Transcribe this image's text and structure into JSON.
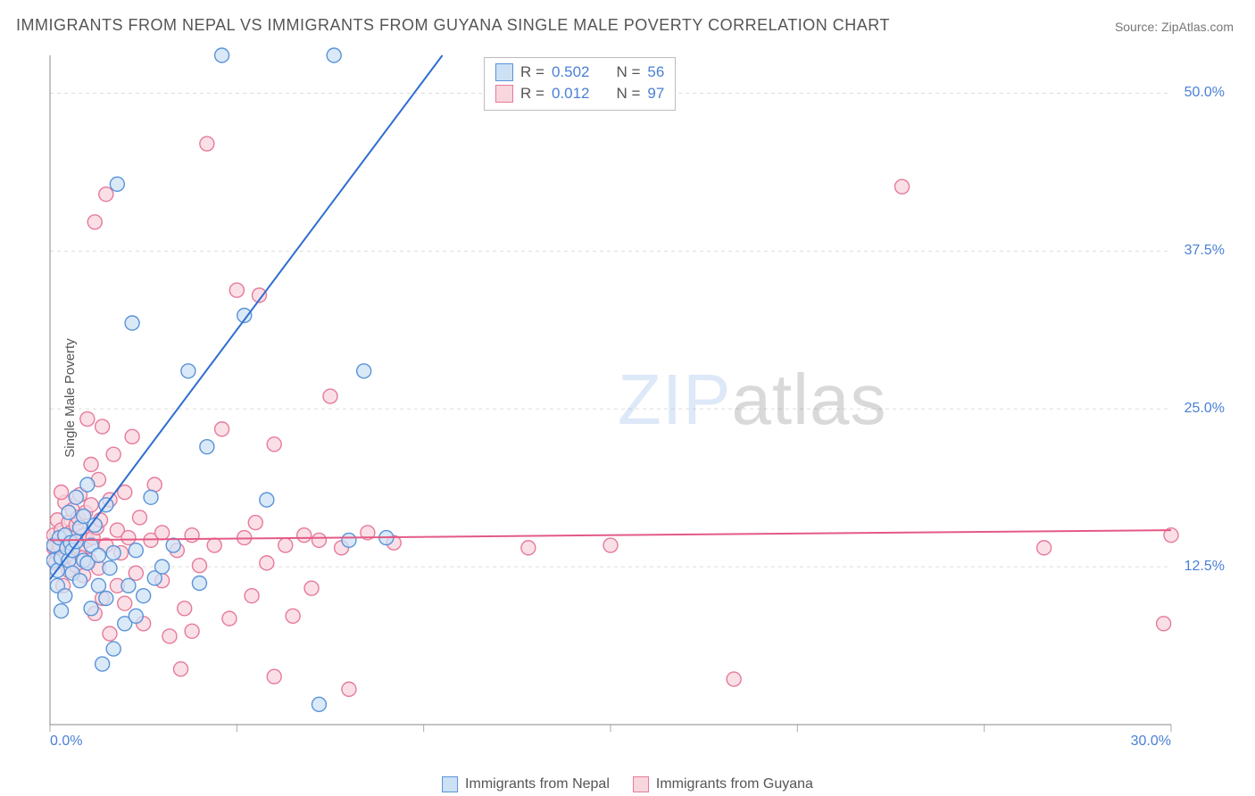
{
  "title": "IMMIGRANTS FROM NEPAL VS IMMIGRANTS FROM GUYANA SINGLE MALE POVERTY CORRELATION CHART",
  "source": "Source: ZipAtlas.com",
  "ylabel": "Single Male Poverty",
  "chart": {
    "type": "scatter",
    "xlim": [
      0,
      30
    ],
    "ylim": [
      0,
      53
    ],
    "xticks": [
      0,
      5,
      10,
      15,
      20,
      25,
      30
    ],
    "xtick_labels": [
      "0.0%",
      "",
      "",
      "",
      "",
      "",
      "30.0%"
    ],
    "yticks": [
      12.5,
      25.0,
      37.5,
      50.0
    ],
    "ytick_labels": [
      "12.5%",
      "25.0%",
      "37.5%",
      "50.0%"
    ],
    "background_color": "#ffffff",
    "grid_color": "#dddddd",
    "axis_color": "#888888",
    "tick_color": "#aaaaaa",
    "marker_radius": 8,
    "marker_stroke_width": 1.4,
    "line_width": 2,
    "series": [
      {
        "name": "Immigrants from Nepal",
        "fill": "#cde1f5",
        "stroke": "#5a93d8",
        "regression": {
          "x1": 0,
          "y1": 11.5,
          "x2": 10.5,
          "y2": 53,
          "color": "#2f6ecf"
        },
        "stats": {
          "R": "0.502",
          "N": "56"
        },
        "points": [
          [
            0.1,
            13.0
          ],
          [
            0.1,
            14.2
          ],
          [
            0.2,
            12.2
          ],
          [
            0.2,
            11.0
          ],
          [
            0.25,
            14.8
          ],
          [
            0.3,
            13.2
          ],
          [
            0.3,
            9.0
          ],
          [
            0.4,
            10.2
          ],
          [
            0.4,
            15.0
          ],
          [
            0.45,
            14.0
          ],
          [
            0.5,
            13.0
          ],
          [
            0.5,
            16.8
          ],
          [
            0.55,
            14.4
          ],
          [
            0.6,
            12.0
          ],
          [
            0.6,
            13.8
          ],
          [
            0.7,
            14.5
          ],
          [
            0.7,
            18.0
          ],
          [
            0.8,
            15.6
          ],
          [
            0.8,
            11.4
          ],
          [
            0.9,
            16.5
          ],
          [
            0.9,
            13.0
          ],
          [
            1.0,
            12.8
          ],
          [
            1.0,
            19.0
          ],
          [
            1.1,
            9.2
          ],
          [
            1.1,
            14.2
          ],
          [
            1.2,
            15.8
          ],
          [
            1.3,
            11.0
          ],
          [
            1.3,
            13.4
          ],
          [
            1.4,
            4.8
          ],
          [
            1.5,
            10.0
          ],
          [
            1.5,
            17.4
          ],
          [
            1.6,
            12.4
          ],
          [
            1.7,
            13.6
          ],
          [
            1.7,
            6.0
          ],
          [
            1.8,
            42.8
          ],
          [
            2.0,
            8.0
          ],
          [
            2.1,
            11.0
          ],
          [
            2.2,
            31.8
          ],
          [
            2.3,
            13.8
          ],
          [
            2.3,
            8.6
          ],
          [
            2.5,
            10.2
          ],
          [
            2.7,
            18.0
          ],
          [
            2.8,
            11.6
          ],
          [
            3.0,
            12.5
          ],
          [
            3.3,
            14.2
          ],
          [
            3.7,
            28.0
          ],
          [
            4.0,
            11.2
          ],
          [
            4.2,
            22.0
          ],
          [
            4.6,
            53.0
          ],
          [
            5.2,
            32.4
          ],
          [
            5.8,
            17.8
          ],
          [
            7.6,
            53.0
          ],
          [
            8.4,
            28.0
          ],
          [
            8.0,
            14.6
          ],
          [
            7.2,
            1.6
          ],
          [
            9.0,
            14.8
          ]
        ]
      },
      {
        "name": "Immigrants from Guyana",
        "fill": "#f8d6de",
        "stroke": "#e67a9a",
        "regression": {
          "x1": 0,
          "y1": 14.6,
          "x2": 30,
          "y2": 15.4,
          "color": "#e35a86"
        },
        "stats": {
          "R": "0.012",
          "N": "97"
        },
        "points": [
          [
            0.1,
            14.0
          ],
          [
            0.1,
            15.0
          ],
          [
            0.15,
            12.8
          ],
          [
            0.2,
            13.6
          ],
          [
            0.2,
            16.2
          ],
          [
            0.25,
            14.2
          ],
          [
            0.3,
            13.0
          ],
          [
            0.3,
            15.4
          ],
          [
            0.35,
            11.0
          ],
          [
            0.4,
            14.8
          ],
          [
            0.4,
            17.6
          ],
          [
            0.45,
            13.4
          ],
          [
            0.5,
            16.0
          ],
          [
            0.5,
            12.2
          ],
          [
            0.55,
            15.2
          ],
          [
            0.6,
            14.4
          ],
          [
            0.6,
            17.0
          ],
          [
            0.65,
            13.8
          ],
          [
            0.7,
            15.8
          ],
          [
            0.7,
            12.6
          ],
          [
            0.75,
            16.4
          ],
          [
            0.8,
            14.0
          ],
          [
            0.8,
            18.2
          ],
          [
            0.85,
            13.2
          ],
          [
            0.9,
            15.0
          ],
          [
            0.9,
            11.8
          ],
          [
            0.95,
            16.8
          ],
          [
            1.0,
            14.6
          ],
          [
            1.0,
            24.2
          ],
          [
            1.05,
            13.0
          ],
          [
            1.1,
            17.4
          ],
          [
            1.1,
            20.6
          ],
          [
            1.15,
            14.8
          ],
          [
            1.2,
            39.8
          ],
          [
            1.2,
            8.8
          ],
          [
            1.25,
            15.6
          ],
          [
            1.3,
            19.4
          ],
          [
            1.3,
            12.4
          ],
          [
            1.35,
            16.2
          ],
          [
            1.4,
            23.6
          ],
          [
            1.4,
            10.0
          ],
          [
            1.5,
            42.0
          ],
          [
            1.5,
            14.2
          ],
          [
            1.6,
            17.8
          ],
          [
            1.6,
            7.2
          ],
          [
            1.7,
            21.4
          ],
          [
            1.8,
            15.4
          ],
          [
            1.8,
            11.0
          ],
          [
            1.9,
            13.6
          ],
          [
            2.0,
            18.4
          ],
          [
            2.0,
            9.6
          ],
          [
            2.1,
            14.8
          ],
          [
            2.2,
            22.8
          ],
          [
            2.3,
            12.0
          ],
          [
            2.4,
            16.4
          ],
          [
            2.5,
            8.0
          ],
          [
            2.7,
            14.6
          ],
          [
            2.8,
            19.0
          ],
          [
            3.0,
            11.4
          ],
          [
            3.0,
            15.2
          ],
          [
            3.2,
            7.0
          ],
          [
            3.4,
            13.8
          ],
          [
            3.5,
            4.4
          ],
          [
            3.6,
            9.2
          ],
          [
            3.8,
            15.0
          ],
          [
            3.8,
            7.4
          ],
          [
            4.0,
            12.6
          ],
          [
            4.2,
            46.0
          ],
          [
            4.4,
            14.2
          ],
          [
            4.6,
            23.4
          ],
          [
            4.8,
            8.4
          ],
          [
            5.0,
            34.4
          ],
          [
            5.2,
            14.8
          ],
          [
            5.4,
            10.2
          ],
          [
            5.5,
            16.0
          ],
          [
            5.6,
            34.0
          ],
          [
            5.8,
            12.8
          ],
          [
            6.0,
            22.2
          ],
          [
            6.0,
            3.8
          ],
          [
            6.3,
            14.2
          ],
          [
            6.5,
            8.6
          ],
          [
            6.8,
            15.0
          ],
          [
            7.0,
            10.8
          ],
          [
            7.2,
            14.6
          ],
          [
            7.5,
            26.0
          ],
          [
            7.8,
            14.0
          ],
          [
            8.0,
            2.8
          ],
          [
            8.5,
            15.2
          ],
          [
            9.2,
            14.4
          ],
          [
            12.8,
            14.0
          ],
          [
            15.0,
            14.2
          ],
          [
            18.3,
            3.6
          ],
          [
            22.8,
            42.6
          ],
          [
            26.6,
            14.0
          ],
          [
            29.8,
            8.0
          ],
          [
            30.0,
            15.0
          ],
          [
            0.3,
            18.4
          ]
        ]
      }
    ]
  },
  "legend_bottom": [
    {
      "label": "Immigrants from Nepal",
      "fill": "#cde1f5",
      "stroke": "#5a93d8"
    },
    {
      "label": "Immigrants from Guyana",
      "fill": "#f8d6de",
      "stroke": "#e67a9a"
    }
  ],
  "watermark": {
    "zip": "ZIP",
    "atlas": "atlas"
  }
}
